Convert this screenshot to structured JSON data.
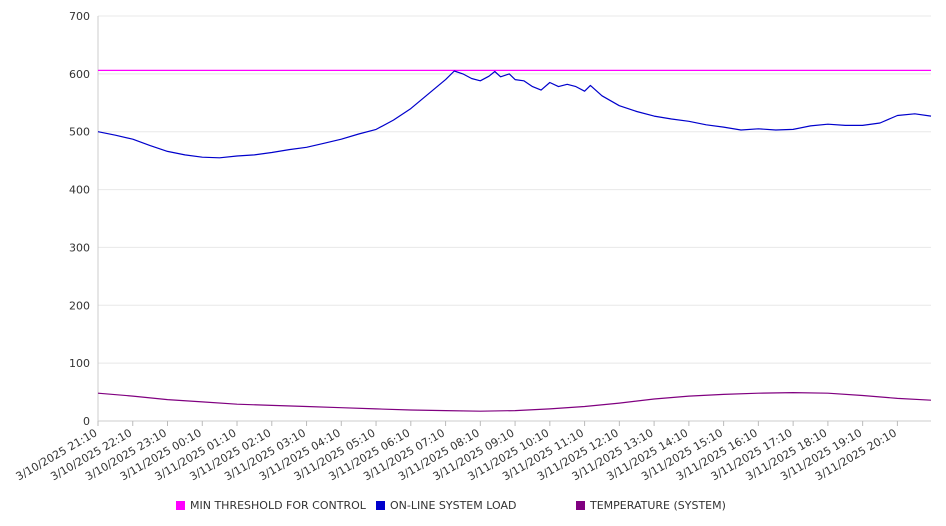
{
  "chart_data": {
    "type": "line",
    "title": "",
    "xlabel": "",
    "ylabel": "",
    "ylim": [
      0,
      700
    ],
    "yticks": [
      "0",
      "100",
      "200",
      "300",
      "400",
      "500",
      "600",
      "700"
    ],
    "xtick_labels": [
      "3/10/2025 21:10",
      "3/10/2025 22:10",
      "3/10/2025 23:10",
      "3/11/2025 00:10",
      "3/11/2025 01:10",
      "3/11/2025 02:10",
      "3/11/2025 03:10",
      "3/11/2025 04:10",
      "3/11/2025 05:10",
      "3/11/2025 06:10",
      "3/11/2025 07:10",
      "3/11/2025 08:10",
      "3/11/2025 09:10",
      "3/11/2025 10:10",
      "3/11/2025 11:10",
      "3/11/2025 12:10",
      "3/11/2025 13:10",
      "3/11/2025 14:10",
      "3/11/2025 15:10",
      "3/11/2025 16:10",
      "3/11/2025 17:10",
      "3/11/2025 18:10",
      "3/11/2025 19:10",
      "3/11/2025 20:10"
    ],
    "x_end": "3/11/2025 21:08",
    "grid": "horizontal",
    "legend_position": "bottom",
    "series": [
      {
        "name": "MIN THRESHOLD FOR CONTROL",
        "color": "#ff00ff",
        "points": [
          [
            "3/10/2025 21:10",
            606
          ],
          [
            "3/11/2025 21:08",
            606
          ]
        ]
      },
      {
        "name": "ON-LINE SYSTEM LOAD",
        "color": "#0000cc",
        "points": [
          [
            "3/10/2025 21:10",
            500
          ],
          [
            "3/10/2025 21:40",
            494
          ],
          [
            "3/10/2025 22:10",
            487
          ],
          [
            "3/10/2025 22:40",
            476
          ],
          [
            "3/10/2025 23:10",
            466
          ],
          [
            "3/10/2025 23:40",
            460
          ],
          [
            "3/11/2025 00:10",
            456
          ],
          [
            "3/11/2025 00:40",
            455
          ],
          [
            "3/11/2025 01:10",
            458
          ],
          [
            "3/11/2025 01:40",
            460
          ],
          [
            "3/11/2025 02:10",
            464
          ],
          [
            "3/11/2025 02:40",
            469
          ],
          [
            "3/11/2025 03:10",
            473
          ],
          [
            "3/11/2025 03:40",
            480
          ],
          [
            "3/11/2025 04:10",
            487
          ],
          [
            "3/11/2025 04:40",
            496
          ],
          [
            "3/11/2025 05:10",
            504
          ],
          [
            "3/11/2025 05:40",
            520
          ],
          [
            "3/11/2025 06:10",
            540
          ],
          [
            "3/11/2025 06:40",
            565
          ],
          [
            "3/11/2025 07:10",
            590
          ],
          [
            "3/11/2025 07:25",
            605
          ],
          [
            "3/11/2025 07:40",
            600
          ],
          [
            "3/11/2025 07:55",
            592
          ],
          [
            "3/11/2025 08:10",
            588
          ],
          [
            "3/11/2025 08:25",
            596
          ],
          [
            "3/11/2025 08:35",
            604
          ],
          [
            "3/11/2025 08:45",
            595
          ],
          [
            "3/11/2025 09:00",
            600
          ],
          [
            "3/11/2025 09:10",
            590
          ],
          [
            "3/11/2025 09:25",
            588
          ],
          [
            "3/11/2025 09:40",
            578
          ],
          [
            "3/11/2025 09:55",
            572
          ],
          [
            "3/11/2025 10:10",
            585
          ],
          [
            "3/11/2025 10:25",
            578
          ],
          [
            "3/11/2025 10:40",
            582
          ],
          [
            "3/11/2025 10:55",
            578
          ],
          [
            "3/11/2025 11:10",
            570
          ],
          [
            "3/11/2025 11:20",
            580
          ],
          [
            "3/11/2025 11:40",
            562
          ],
          [
            "3/11/2025 12:10",
            545
          ],
          [
            "3/11/2025 12:40",
            535
          ],
          [
            "3/11/2025 13:10",
            527
          ],
          [
            "3/11/2025 13:40",
            522
          ],
          [
            "3/11/2025 14:10",
            518
          ],
          [
            "3/11/2025 14:40",
            512
          ],
          [
            "3/11/2025 15:10",
            508
          ],
          [
            "3/11/2025 15:40",
            503
          ],
          [
            "3/11/2025 16:10",
            505
          ],
          [
            "3/11/2025 16:40",
            503
          ],
          [
            "3/11/2025 17:10",
            504
          ],
          [
            "3/11/2025 17:40",
            510
          ],
          [
            "3/11/2025 18:10",
            513
          ],
          [
            "3/11/2025 18:40",
            511
          ],
          [
            "3/11/2025 19:10",
            511
          ],
          [
            "3/11/2025 19:40",
            515
          ],
          [
            "3/11/2025 20:10",
            528
          ],
          [
            "3/11/2025 20:40",
            531
          ],
          [
            "3/11/2025 21:08",
            527
          ]
        ]
      },
      {
        "name": "TEMPERATURE (SYSTEM)",
        "color": "#800080",
        "points": [
          [
            "3/10/2025 21:10",
            48
          ],
          [
            "3/10/2025 22:10",
            43
          ],
          [
            "3/10/2025 23:10",
            37
          ],
          [
            "3/11/2025 00:10",
            33
          ],
          [
            "3/11/2025 01:10",
            29
          ],
          [
            "3/11/2025 02:10",
            27
          ],
          [
            "3/11/2025 03:10",
            25
          ],
          [
            "3/11/2025 04:10",
            23
          ],
          [
            "3/11/2025 05:10",
            21
          ],
          [
            "3/11/2025 06:10",
            19
          ],
          [
            "3/11/2025 07:10",
            18
          ],
          [
            "3/11/2025 08:10",
            17
          ],
          [
            "3/11/2025 09:10",
            18
          ],
          [
            "3/11/2025 10:10",
            21
          ],
          [
            "3/11/2025 11:10",
            25
          ],
          [
            "3/11/2025 12:10",
            31
          ],
          [
            "3/11/2025 13:10",
            38
          ],
          [
            "3/11/2025 14:10",
            43
          ],
          [
            "3/11/2025 15:10",
            46
          ],
          [
            "3/11/2025 16:10",
            48
          ],
          [
            "3/11/2025 17:10",
            49
          ],
          [
            "3/11/2025 18:10",
            48
          ],
          [
            "3/11/2025 19:10",
            44
          ],
          [
            "3/11/2025 20:10",
            39
          ],
          [
            "3/11/2025 21:08",
            36
          ]
        ]
      }
    ]
  }
}
